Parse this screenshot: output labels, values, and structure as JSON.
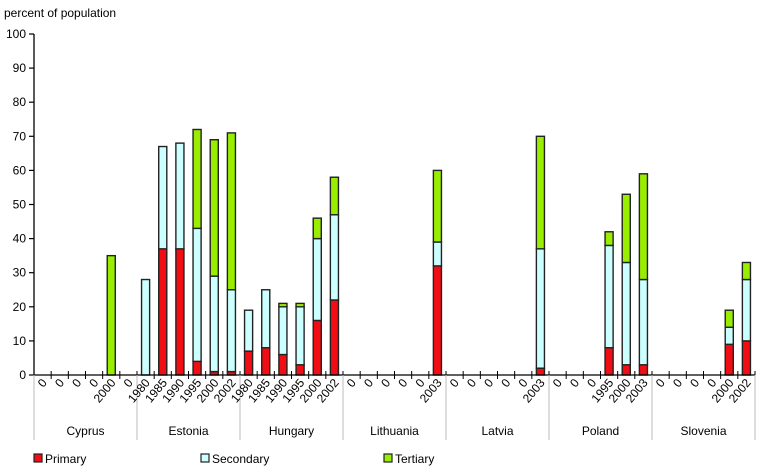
{
  "chart_data": {
    "type": "bar",
    "stacked": true,
    "ylabel": "percent of population",
    "ylim": [
      0,
      100
    ],
    "yticks": [
      0,
      10,
      20,
      30,
      40,
      50,
      60,
      70,
      80,
      90,
      100
    ],
    "grid": false,
    "legend_position": "bottom",
    "groups": [
      {
        "name": "Cyprus",
        "labels": [
          "0",
          "0",
          "0",
          "0",
          "2000",
          "0"
        ]
      },
      {
        "name": "Estonia",
        "labels": [
          "1980",
          "1985",
          "1990",
          "1995",
          "2000",
          "2002"
        ]
      },
      {
        "name": "Hungary",
        "labels": [
          "1980",
          "1985",
          "1990",
          "1995",
          "2000",
          "2002"
        ]
      },
      {
        "name": "Lithuania",
        "labels": [
          "0",
          "0",
          "0",
          "0",
          "0",
          "2003"
        ]
      },
      {
        "name": "Latvia",
        "labels": [
          "0",
          "0",
          "0",
          "0",
          "0",
          "2003"
        ]
      },
      {
        "name": "Poland",
        "labels": [
          "0",
          "0",
          "0",
          "1995",
          "2000",
          "2003"
        ]
      },
      {
        "name": "Slovenia",
        "labels": [
          "0",
          "0",
          "0",
          "0",
          "2000",
          "2002"
        ]
      }
    ],
    "series": [
      {
        "name": "Primary",
        "color": "#F20D14",
        "values": [
          0,
          0,
          0,
          0,
          0,
          0,
          0,
          37,
          37,
          4,
          1,
          1,
          7,
          8,
          6,
          3,
          16,
          22,
          0,
          0,
          0,
          0,
          0,
          32,
          0,
          0,
          0,
          0,
          0,
          2,
          0,
          0,
          0,
          8,
          3,
          3,
          0,
          0,
          0,
          0,
          9,
          10
        ]
      },
      {
        "name": "Secondary",
        "color": "#CCFFFF",
        "values": [
          0,
          0,
          0,
          0,
          0,
          0,
          28,
          30,
          31,
          39,
          28,
          24,
          12,
          17,
          14,
          17,
          24,
          25,
          0,
          0,
          0,
          0,
          0,
          7,
          0,
          0,
          0,
          0,
          0,
          35,
          0,
          0,
          0,
          30,
          30,
          25,
          0,
          0,
          0,
          0,
          5,
          18
        ]
      },
      {
        "name": "Tertiary",
        "color": "#99EE00",
        "values": [
          0,
          0,
          0,
          0,
          35,
          0,
          0,
          0,
          0,
          29,
          40,
          46,
          0,
          0,
          1,
          1,
          6,
          11,
          0,
          0,
          0,
          0,
          0,
          21,
          0,
          0,
          0,
          0,
          0,
          33,
          0,
          0,
          0,
          4,
          20,
          31,
          0,
          0,
          0,
          0,
          5,
          5
        ]
      }
    ]
  }
}
